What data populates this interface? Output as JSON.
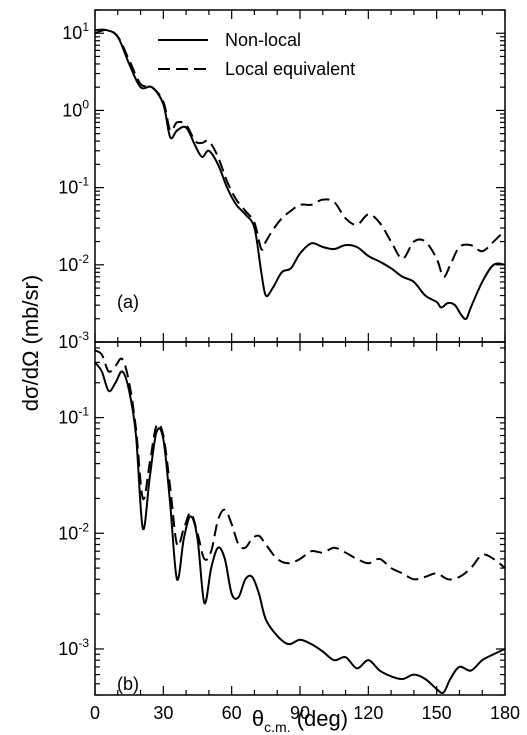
{
  "figure": {
    "ylabel": "dσ/dΩ (mb/sr)",
    "xlabel_main": "θ",
    "xlabel_sub": "c.m.",
    "xlabel_tail": " (deg)"
  },
  "chart_data": [
    {
      "type": "line",
      "panel_label": "(a)",
      "xlim": [
        0,
        180
      ],
      "ylim": [
        0.001,
        20
      ],
      "yscale": "log",
      "x_ticks": [
        "0",
        "30",
        "60",
        "90",
        "120",
        "150",
        "180"
      ],
      "y_ticks": [
        {
          "base": "10",
          "exp": "1"
        },
        {
          "base": "10",
          "exp": "0"
        },
        {
          "base": "10",
          "exp": "-1"
        },
        {
          "base": "10",
          "exp": "-2"
        },
        {
          "base": "10",
          "exp": "-3"
        }
      ],
      "legend": {
        "position": "top-right"
      },
      "series": [
        {
          "name": "Non-local",
          "style": "solid",
          "color": "#000000",
          "x": [
            0,
            5,
            10,
            15,
            20,
            25,
            30,
            33,
            36,
            40,
            44,
            47,
            50,
            54,
            58,
            62,
            66,
            70,
            73,
            75,
            78,
            82,
            86,
            90,
            95,
            100,
            105,
            110,
            115,
            120,
            125,
            130,
            135,
            140,
            145,
            150,
            152,
            155,
            158,
            161,
            163,
            165,
            170,
            175,
            180
          ],
          "y": [
            11,
            11,
            9,
            4,
            2,
            2,
            1.2,
            0.45,
            0.55,
            0.6,
            0.35,
            0.25,
            0.3,
            0.2,
            0.1,
            0.06,
            0.045,
            0.03,
            0.008,
            0.004,
            0.005,
            0.008,
            0.009,
            0.014,
            0.019,
            0.017,
            0.016,
            0.018,
            0.017,
            0.013,
            0.011,
            0.009,
            0.007,
            0.006,
            0.004,
            0.0033,
            0.0028,
            0.0032,
            0.003,
            0.0022,
            0.002,
            0.0028,
            0.006,
            0.01,
            0.01
          ]
        },
        {
          "name": "Local equivalent",
          "style": "dashed",
          "color": "#000000",
          "x": [
            0,
            5,
            10,
            15,
            20,
            25,
            30,
            33,
            36,
            40,
            44,
            47,
            50,
            54,
            58,
            62,
            66,
            70,
            73,
            75,
            78,
            82,
            86,
            90,
            95,
            100,
            105,
            110,
            115,
            120,
            125,
            130,
            135,
            140,
            145,
            150,
            153,
            156,
            160,
            165,
            170,
            175,
            180
          ],
          "y": [
            10,
            11,
            9,
            4.5,
            2.2,
            2,
            1.3,
            0.55,
            0.7,
            0.65,
            0.4,
            0.38,
            0.4,
            0.25,
            0.12,
            0.07,
            0.05,
            0.035,
            0.016,
            0.02,
            0.028,
            0.04,
            0.05,
            0.06,
            0.06,
            0.07,
            0.065,
            0.04,
            0.033,
            0.045,
            0.035,
            0.02,
            0.012,
            0.02,
            0.02,
            0.012,
            0.007,
            0.01,
            0.017,
            0.018,
            0.015,
            0.02,
            0.028
          ]
        }
      ]
    },
    {
      "type": "line",
      "panel_label": "(b)",
      "xlim": [
        0,
        180
      ],
      "ylim": [
        0.0004,
        0.45
      ],
      "yscale": "log",
      "x_ticks": [
        "0",
        "30",
        "60",
        "90",
        "120",
        "150",
        "180"
      ],
      "y_ticks": [
        {
          "base": "10",
          "exp": "-1"
        },
        {
          "base": "10",
          "exp": "-2"
        },
        {
          "base": "10",
          "exp": "-3"
        }
      ],
      "series": [
        {
          "name": "Non-local",
          "style": "solid",
          "color": "#000000",
          "x": [
            0,
            3,
            6,
            9,
            12,
            15,
            18,
            21,
            24,
            27,
            30,
            33,
            36,
            39,
            42,
            45,
            48,
            51,
            54,
            57,
            60,
            63,
            66,
            69,
            72,
            75,
            80,
            85,
            90,
            95,
            100,
            105,
            110,
            115,
            120,
            125,
            130,
            135,
            140,
            145,
            150,
            153,
            156,
            160,
            165,
            170,
            175,
            180
          ],
          "y": [
            0.3,
            0.25,
            0.17,
            0.2,
            0.25,
            0.17,
            0.07,
            0.011,
            0.03,
            0.075,
            0.065,
            0.018,
            0.004,
            0.009,
            0.014,
            0.009,
            0.0025,
            0.005,
            0.0075,
            0.006,
            0.003,
            0.0028,
            0.004,
            0.0042,
            0.003,
            0.0018,
            0.0013,
            0.0011,
            0.0012,
            0.0011,
            0.00095,
            0.0008,
            0.00085,
            0.00068,
            0.0008,
            0.00065,
            0.00058,
            0.00055,
            0.0006,
            0.00055,
            0.00045,
            0.00042,
            0.00055,
            0.0007,
            0.00065,
            0.0008,
            0.0009,
            0.001
          ]
        },
        {
          "name": "Local equivalent",
          "style": "dashed",
          "color": "#000000",
          "x": [
            0,
            3,
            6,
            9,
            12,
            15,
            18,
            21,
            24,
            27,
            30,
            33,
            36,
            39,
            42,
            45,
            48,
            51,
            54,
            57,
            60,
            63,
            66,
            69,
            72,
            75,
            80,
            85,
            90,
            95,
            100,
            105,
            110,
            115,
            120,
            125,
            130,
            135,
            140,
            145,
            150,
            155,
            160,
            165,
            170,
            175,
            180
          ],
          "y": [
            0.38,
            0.35,
            0.25,
            0.28,
            0.32,
            0.2,
            0.08,
            0.02,
            0.04,
            0.085,
            0.07,
            0.025,
            0.008,
            0.011,
            0.015,
            0.01,
            0.006,
            0.007,
            0.013,
            0.016,
            0.012,
            0.008,
            0.0075,
            0.009,
            0.0095,
            0.008,
            0.006,
            0.0055,
            0.006,
            0.007,
            0.0068,
            0.0075,
            0.0068,
            0.006,
            0.0055,
            0.006,
            0.005,
            0.0045,
            0.004,
            0.0042,
            0.0045,
            0.004,
            0.0042,
            0.005,
            0.0065,
            0.006,
            0.005
          ]
        }
      ]
    }
  ]
}
